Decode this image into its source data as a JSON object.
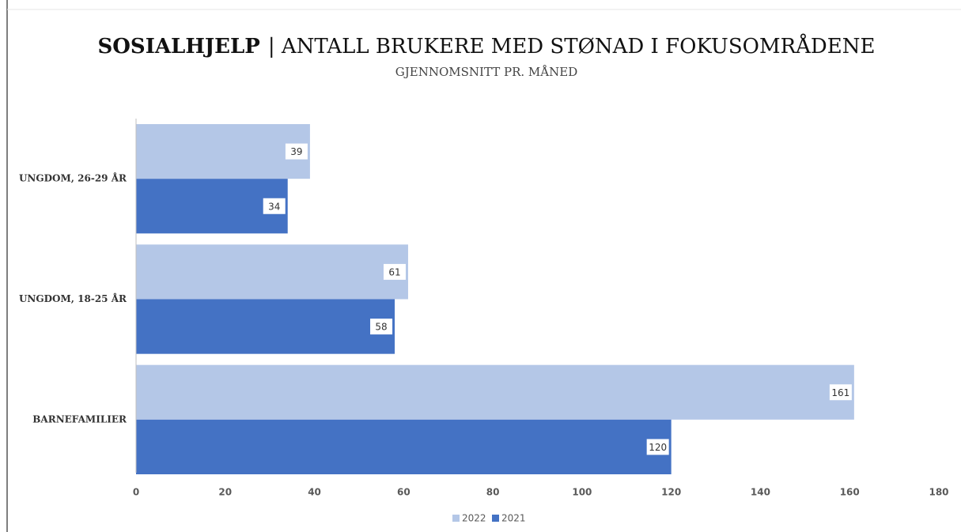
{
  "chart_data": {
    "type": "bar",
    "orientation": "horizontal",
    "title": [
      "SOSIALHJELP",
      "| ANTALL BRUKERE MED STØNAD I FOKUSOMRÅDENE"
    ],
    "subtitle": "GJENNOMSNITT PR. MÅNED",
    "categories": [
      "UNGDOM, 26-29 ÅR",
      "UNGDOM, 18-25 ÅR",
      "BARNEFAMILIER"
    ],
    "series": [
      {
        "name": "2022",
        "color": "#b4c7e7",
        "values": [
          39,
          61,
          161
        ]
      },
      {
        "name": "2021",
        "color": "#4472c4",
        "values": [
          34,
          58,
          120
        ]
      }
    ],
    "xlim": [
      0,
      180
    ],
    "xticks": [
      0,
      20,
      40,
      60,
      80,
      100,
      120,
      140,
      160,
      180
    ],
    "grid": false,
    "legend": "bottom"
  }
}
